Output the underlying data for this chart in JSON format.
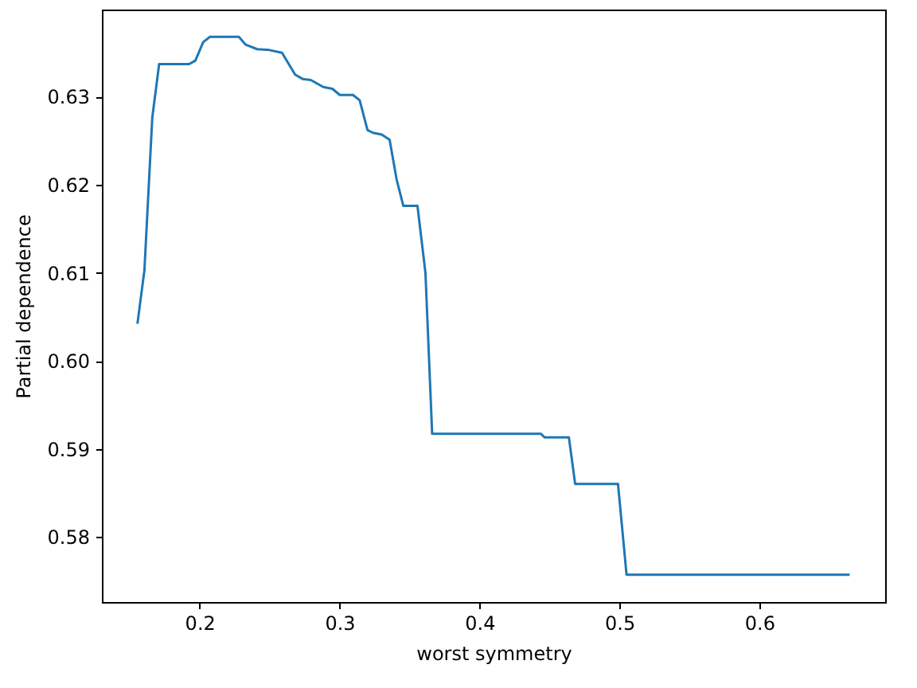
{
  "chart_data": {
    "type": "line",
    "xlabel": "worst symmetry",
    "ylabel": "Partial dependence",
    "xlim": [
      0.1302,
      0.6899
    ],
    "ylim": [
      0.5726,
      0.6399
    ],
    "xticks": [
      0.2,
      0.3,
      0.4,
      0.5,
      0.6
    ],
    "yticks": [
      0.58,
      0.59,
      {
        "value": 0.6,
        "label": "0.60"
      },
      0.61,
      0.62,
      0.63
    ],
    "grid": false,
    "marker": "none",
    "line_style": "solid",
    "x": [
      0.1556,
      0.1606,
      0.1662,
      0.1711,
      0.1925,
      0.197,
      0.2026,
      0.2074,
      0.2281,
      0.233,
      0.2412,
      0.2499,
      0.2589,
      0.2683,
      0.2739,
      0.2795,
      0.2884,
      0.2949,
      0.3002,
      0.3096,
      0.3144,
      0.32,
      0.3239,
      0.3302,
      0.3358,
      0.3408,
      0.3456,
      0.3557,
      0.3614,
      0.3662,
      0.444,
      0.4465,
      0.4639,
      0.4684,
      0.499,
      0.5051,
      0.6645
    ],
    "series": [
      {
        "color": "#1f77b4",
        "values": [
          0.6042,
          0.6103,
          0.6276,
          0.6337,
          0.6337,
          0.6341,
          0.6362,
          0.6368,
          0.6368,
          0.6359,
          0.6354,
          0.6353,
          0.635,
          0.6325,
          0.632,
          0.6319,
          0.6311,
          0.6309,
          0.6302,
          0.6302,
          0.6296,
          0.6262,
          0.6259,
          0.6257,
          0.6251,
          0.6206,
          0.6176,
          0.6176,
          0.61,
          0.5917,
          0.5917,
          0.5913,
          0.5913,
          0.586,
          0.586,
          0.5757,
          0.5757
        ]
      }
    ]
  }
}
